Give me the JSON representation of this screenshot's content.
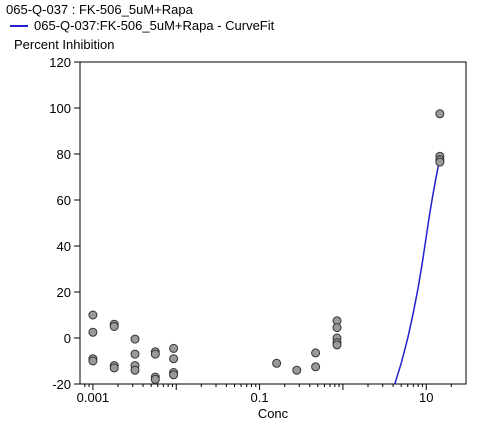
{
  "chart_data": {
    "type": "scatter",
    "title": "065-Q-037  : FK-506_5uM+Rapa",
    "legend": {
      "label": "065-Q-037:FK-506_5uM+Rapa - CurveFit",
      "color": "#2020d0",
      "placement": "top-left"
    },
    "ylabel": "Percent Inhibition",
    "xlabel": "Conc",
    "xscale": "log",
    "xlim": [
      0.0007,
      30
    ],
    "ylim": [
      -20,
      120
    ],
    "xticks": [
      0.001,
      0.1,
      10
    ],
    "xtick_labels": [
      "0.001",
      "0.1",
      "10"
    ],
    "yticks": [
      -20,
      0,
      20,
      40,
      60,
      80,
      100,
      120
    ],
    "ytick_labels": [
      "-20",
      "0",
      "20",
      "40",
      "60",
      "80",
      "100",
      "120"
    ],
    "grid": false,
    "points": {
      "color": "#9a9a9a",
      "x": [
        0.001,
        0.001,
        0.001,
        0.001,
        0.0018,
        0.0018,
        0.0018,
        0.0018,
        0.0032,
        0.0032,
        0.0032,
        0.0032,
        0.0056,
        0.0056,
        0.0056,
        0.0056,
        0.0093,
        0.0093,
        0.0093,
        0.0093,
        0.16,
        0.28,
        0.47,
        0.47,
        0.85,
        0.85,
        0.85,
        0.85,
        0.85,
        14.6,
        14.6,
        14.6,
        14.6
      ],
      "y": [
        10,
        2.5,
        -9,
        -10,
        6,
        5,
        -12,
        -13,
        -0.5,
        -7,
        -12,
        -14,
        -6,
        -7,
        -17,
        -18,
        -4.5,
        -9,
        -15,
        -16,
        -11,
        -14,
        -6.5,
        -12.5,
        7.5,
        4.5,
        0,
        -2,
        -3,
        97.5,
        79,
        77.5,
        76.5
      ]
    },
    "curve": {
      "color": "#2020d0",
      "x": [
        4.2,
        5,
        6,
        7,
        8,
        9,
        10,
        11,
        12,
        13,
        14,
        14.5
      ],
      "y": [
        -20,
        -11,
        0,
        11,
        22,
        33,
        44,
        54,
        62,
        69,
        75,
        78
      ]
    }
  }
}
